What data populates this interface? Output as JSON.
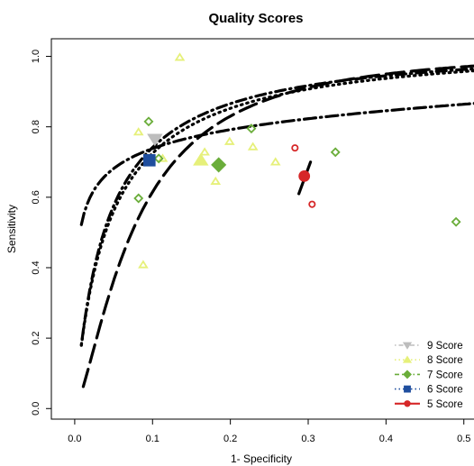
{
  "chart_data": {
    "type": "scatter",
    "title": "Quality Scores",
    "xlabel": "1- Specificity",
    "ylabel": "Sensitivity",
    "xlim": [
      -0.03,
      0.52
    ],
    "ylim": [
      -0.03,
      1.05
    ],
    "xticks": [
      "0.0",
      "0.1",
      "0.2",
      "0.3",
      "0.4",
      "0.5"
    ],
    "yticks": [
      "0.0",
      "0.2",
      "0.4",
      "0.6",
      "0.8",
      "1.0"
    ],
    "grid": false,
    "legend_position": "bottom-right",
    "series": [
      {
        "name": "9 Score",
        "color": "#bdbdbd",
        "marker": "triangle-down",
        "curve_style": "dot-dash",
        "studies": [
          {
            "x": 0.105,
            "y": 0.765
          }
        ],
        "summary": {
          "x": 0.103,
          "y": 0.765
        },
        "sroc_end": {
          "x": 0.52,
          "y": 0.97
        },
        "sroc_fit": {
          "a": 0.5,
          "b": 0.28,
          "c": 0.55
        }
      },
      {
        "name": "8 Score",
        "color": "#e6f07a",
        "marker": "triangle",
        "curve_style": "dotted",
        "studies": [
          {
            "x": 0.082,
            "y": 0.785
          },
          {
            "x": 0.135,
            "y": 0.997
          },
          {
            "x": 0.088,
            "y": 0.408
          },
          {
            "x": 0.113,
            "y": 0.71
          },
          {
            "x": 0.181,
            "y": 0.645
          },
          {
            "x": 0.199,
            "y": 0.758
          },
          {
            "x": 0.229,
            "y": 0.743
          },
          {
            "x": 0.258,
            "y": 0.7
          },
          {
            "x": 0.167,
            "y": 0.728
          }
        ],
        "summary": {
          "x": 0.162,
          "y": 0.705
        },
        "sroc_fit": {
          "a": 0.79,
          "b": 0.84,
          "c": 0.515
        }
      },
      {
        "name": "7 Score",
        "color": "#6aad3a",
        "marker": "diamond",
        "curve_style": "dash-dot",
        "studies": [
          {
            "x": 0.095,
            "y": 0.815
          },
          {
            "x": 0.082,
            "y": 0.597
          },
          {
            "x": 0.108,
            "y": 0.71
          },
          {
            "x": 0.227,
            "y": 0.795
          },
          {
            "x": 0.335,
            "y": 0.728
          },
          {
            "x": 0.49,
            "y": 0.53
          }
        ],
        "summary": {
          "x": 0.185,
          "y": 0.692
        },
        "sroc_fit": {
          "a": 0.89,
          "b": 0.35,
          "c": 0.96
        }
      },
      {
        "name": "6 Score",
        "color": "#1f4e9e",
        "marker": "square",
        "curve_style": "dotted",
        "studies": [],
        "summary": {
          "x": 0.096,
          "y": 0.705
        }
      },
      {
        "name": "5 Score",
        "color": "#d62728",
        "marker": "circle",
        "curve_style": "solid",
        "studies": [
          {
            "x": 0.283,
            "y": 0.74
          },
          {
            "x": 0.305,
            "y": 0.58
          }
        ],
        "summary": {
          "x": 0.295,
          "y": 0.66
        },
        "sroc_segment": [
          {
            "x": 0.288,
            "y": 0.61
          },
          {
            "x": 0.303,
            "y": 0.7
          }
        ]
      }
    ]
  }
}
